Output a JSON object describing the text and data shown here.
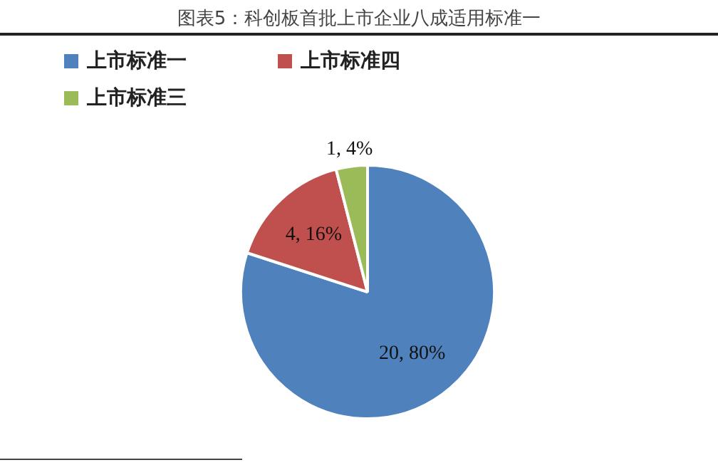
{
  "chart_data": {
    "type": "pie",
    "title": "图表5：科创板首批上市企业八成适用标准一",
    "categories": [
      "上市标准一",
      "上市标准四",
      "上市标准三"
    ],
    "values": [
      20,
      4,
      1
    ],
    "colors": [
      "#4f81bd",
      "#c0504d",
      "#9bbb59"
    ],
    "value_labels": [
      "20, 80%",
      "4, 16%",
      "1, 4%"
    ],
    "legend": "top left"
  }
}
